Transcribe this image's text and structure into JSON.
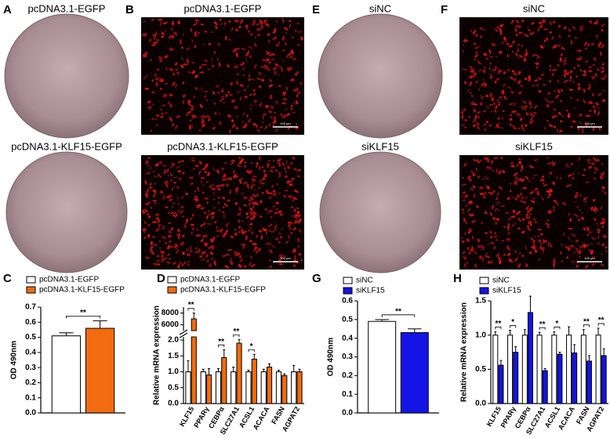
{
  "image_panels": [
    {
      "label": "A",
      "kind": "plate",
      "titles": [
        "pcDNA3.1-EGFP",
        "pcDNA3.1-KLF15-EGFP"
      ]
    },
    {
      "label": "B",
      "kind": "micrograph",
      "titles": [
        "pcDNA3.1-EGFP",
        "pcDNA3.1-KLF15-EGFP"
      ],
      "scale_bar": "100 μm"
    },
    {
      "label": "E",
      "kind": "plate",
      "titles": [
        "siNC",
        "siKLF15"
      ]
    },
    {
      "label": "F",
      "kind": "micrograph",
      "titles": [
        "siNC",
        "siKLF15"
      ],
      "scale_bar": "100 μm"
    }
  ],
  "chart_data": [
    {
      "type": "bar",
      "panel_label": "C",
      "ylabel": "OD 490nm",
      "categories": [
        null
      ],
      "series": [
        {
          "name": "pcDNA3.1-EGFP",
          "color": "#ffffff",
          "values": [
            0.51
          ],
          "errors": [
            0.02
          ]
        },
        {
          "name": "pcDNA3.1-KLF15-EGFP",
          "color": "#f26b0f",
          "values": [
            0.56
          ],
          "errors": [
            0.05
          ]
        }
      ],
      "ylim": [
        0,
        0.7
      ],
      "yticks": [
        {
          "value": 0,
          "label": "0.0"
        },
        0.1,
        0.2,
        0.3,
        0.4,
        0.5,
        0.6,
        0.7
      ],
      "significance": [
        "**"
      ]
    },
    {
      "type": "bar",
      "panel_label": "D",
      "ylabel": "Relative mRNA expression",
      "categories": [
        "KLF15",
        "PPARγ",
        "CEBPα",
        "SLC27A1",
        "ACSL1",
        "ACACA",
        "FASN",
        "AGPAT2"
      ],
      "series": [
        {
          "name": "pcDNA3.1-EGFP",
          "color": "#ffffff",
          "values": [
            1.0,
            1.0,
            1.0,
            1.0,
            1.0,
            1.0,
            1.0,
            1.0
          ],
          "errors": [
            0.35,
            0.08,
            0.1,
            0.15,
            0.05,
            0.08,
            0.05,
            0.2
          ]
        },
        {
          "name": "pcDNA3.1-KLF15-EGFP",
          "color": "#f26b0f",
          "values": [
            7000,
            0.9,
            1.45,
            1.9,
            1.4,
            1.15,
            0.88,
            1.0
          ],
          "errors": [
            1000,
            0.2,
            0.25,
            0.12,
            0.15,
            0.1,
            0.05,
            0.08
          ]
        }
      ],
      "ylim": [
        0,
        2.1
      ],
      "yticks": [
        {
          "value": 0,
          "label": "0.0"
        },
        0.5,
        {
          "value": 1,
          "label": "1.0"
        },
        1.5,
        {
          "value": 2,
          "label": "2.0"
        }
      ],
      "y_break": {
        "ylim": [
          5000,
          9000
        ],
        "yticks": [
          6000,
          8000
        ]
      },
      "significance": [
        "**",
        null,
        "**",
        "**",
        "*",
        null,
        null,
        null
      ]
    },
    {
      "type": "bar",
      "panel_label": "G",
      "ylabel": "OD 490nm",
      "categories": [
        null
      ],
      "series": [
        {
          "name": "siNC",
          "color": "#ffffff",
          "values": [
            0.49
          ],
          "errors": [
            0.01
          ]
        },
        {
          "name": "siKLF15",
          "color": "#1414e6",
          "values": [
            0.43
          ],
          "errors": [
            0.02
          ]
        }
      ],
      "ylim": [
        0,
        0.6
      ],
      "yticks": [
        {
          "value": 0,
          "label": "0.0"
        },
        0.1,
        0.2,
        0.3,
        0.4,
        0.5,
        0.6
      ],
      "significance": [
        "**"
      ]
    },
    {
      "type": "bar",
      "panel_label": "H",
      "ylabel": "Relative mRNA expression",
      "categories": [
        "KLF15",
        "PPARγ",
        "CEBPα",
        "SLC27A1",
        "ACSL1",
        "ACACA",
        "FASN",
        "AGPAT2"
      ],
      "series": [
        {
          "name": "siNC",
          "color": "#ffffff",
          "values": [
            1.0,
            1.0,
            1.0,
            1.0,
            1.0,
            1.0,
            1.0,
            1.0
          ],
          "errors": [
            0.05,
            0.07,
            0.08,
            0.04,
            0.05,
            0.12,
            0.08,
            0.1
          ]
        },
        {
          "name": "siKLF15",
          "color": "#1414e6",
          "values": [
            0.56,
            0.75,
            1.33,
            0.48,
            0.72,
            0.74,
            0.62,
            0.7
          ],
          "errors": [
            0.07,
            0.08,
            0.25,
            0.03,
            0.03,
            0.12,
            0.08,
            0.1
          ]
        }
      ],
      "ylim": [
        0,
        1.5
      ],
      "yticks": [
        {
          "value": 0,
          "label": "0.0"
        },
        0.5,
        {
          "value": 1,
          "label": "1.0"
        },
        1.5
      ],
      "significance": [
        "**",
        "*",
        null,
        "**",
        "*",
        null,
        "**",
        "**"
      ]
    }
  ]
}
